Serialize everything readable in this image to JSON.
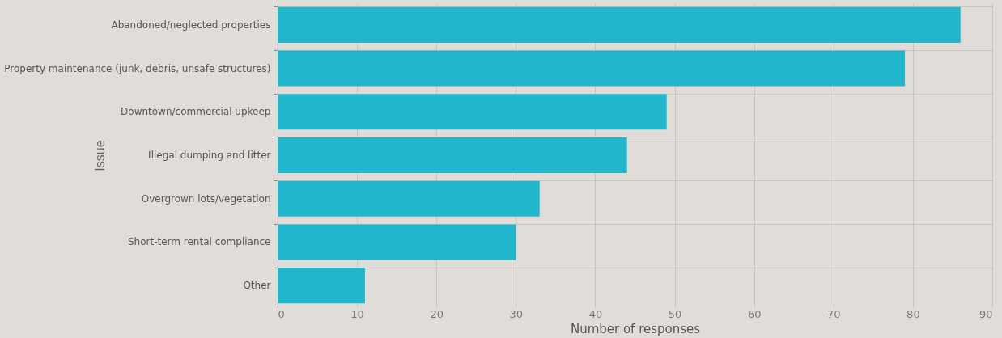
{
  "chart_data": {
    "type": "bar",
    "orientation": "horizontal",
    "xlabel": "Number of responses",
    "ylabel": "Issue",
    "categories": [
      "Abandoned/neglected properties",
      "Property maintenance (junk, debris, unsafe structures)",
      "Downtown/commercial upkeep",
      "Illegal dumping and litter",
      "Overgrown lots/vegetation",
      "Short-term rental compliance",
      "Other"
    ],
    "values": [
      86,
      79,
      49,
      44,
      33,
      30,
      11
    ],
    "color": "#22b6cc",
    "xlim": [
      0,
      90
    ],
    "xticks": [
      0,
      10,
      20,
      30,
      40,
      50,
      60,
      70,
      80,
      90
    ],
    "grid": true
  }
}
